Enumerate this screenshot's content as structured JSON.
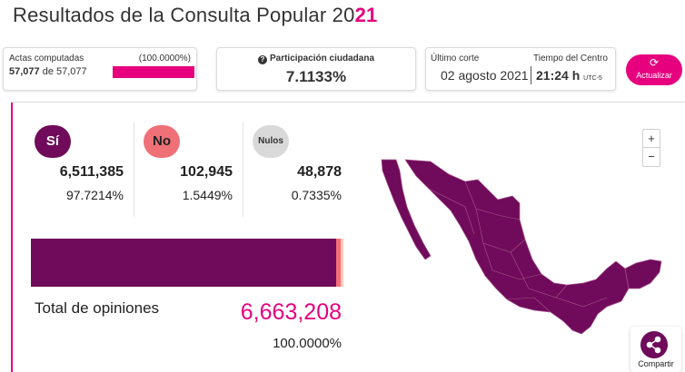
{
  "header": {
    "title_main": "Resultados de la Consulta Popular 20",
    "title_accent": "21"
  },
  "actas": {
    "label": "Actas computadas",
    "percent": "(100.0000%)",
    "count": "57,077",
    "of_text": " de 57,077",
    "progress": 1.0
  },
  "participacion": {
    "label": "Participación ciudadana",
    "value": "7.1133%",
    "icon": "question-circle-icon"
  },
  "corte": {
    "ultimo_label": "Último corte",
    "tiempo_label": "Tiempo del Centro",
    "date": "02 agosto 2021",
    "time": "21:24 h",
    "tz": "UTC-5"
  },
  "refresh": {
    "label": "Actualizar",
    "icon": "refresh-icon"
  },
  "options": [
    {
      "key": "si",
      "label": "Sí",
      "votes": "6,511,385",
      "percent": "97.7214%",
      "share": 0.977214,
      "color": "#6f0b5a"
    },
    {
      "key": "no",
      "label": "No",
      "votes": "102,945",
      "percent": "1.5449%",
      "share": 0.015449,
      "color": "#f07078"
    },
    {
      "key": "nulos",
      "label": "Nulos",
      "votes": "48,878",
      "percent": "0.7335%",
      "share": 0.007335,
      "color": "#ffc8b8"
    }
  ],
  "total": {
    "label": "Total de opiniones",
    "value": "6,663,208",
    "percent": "100.0000%"
  },
  "map": {
    "zoom_in": "+",
    "zoom_out": "−",
    "fill_color": "#6f0b5a",
    "icon": "mexico-map"
  },
  "share": {
    "label": "Compartir",
    "icon": "share-icon"
  },
  "colors": {
    "accent": "#e6007e",
    "primary": "#6f0b5a"
  }
}
